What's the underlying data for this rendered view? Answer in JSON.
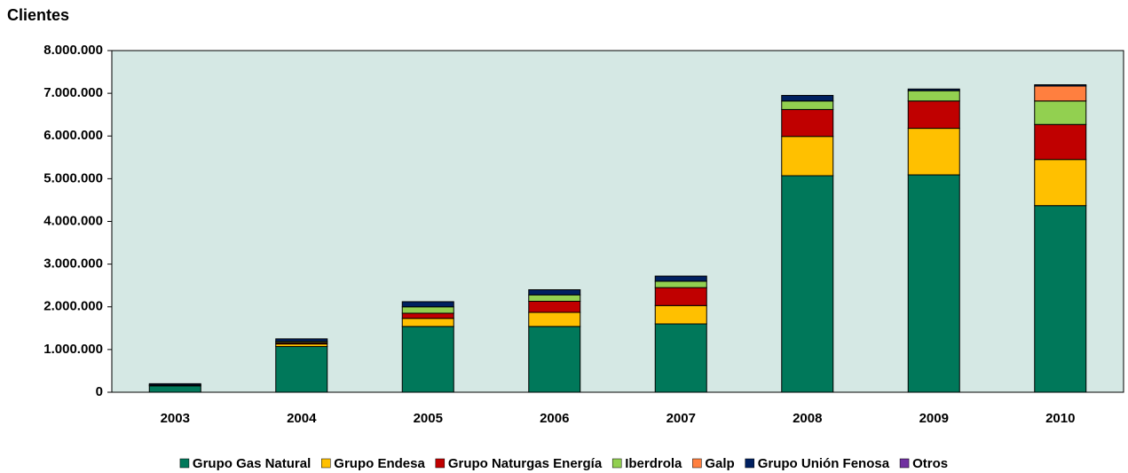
{
  "chart_data": {
    "type": "stacked_bar",
    "title": "Clientes",
    "categories": [
      "2003",
      "2004",
      "2005",
      "2006",
      "2007",
      "2008",
      "2009",
      "2010"
    ],
    "series": [
      {
        "name": "Grupo Gas Natural",
        "color": "#00785a",
        "values": [
          150000,
          1070000,
          1540000,
          1540000,
          1600000,
          5070000,
          5090000,
          4370000
        ]
      },
      {
        "name": "Grupo Endesa",
        "color": "#ffc000",
        "values": [
          20000,
          60000,
          190000,
          330000,
          430000,
          920000,
          1090000,
          1080000
        ]
      },
      {
        "name": "Grupo Naturgas Energía",
        "color": "#c00000",
        "values": [
          0,
          30000,
          120000,
          260000,
          420000,
          630000,
          640000,
          820000
        ]
      },
      {
        "name": "Iberdrola",
        "color": "#92d050",
        "values": [
          0,
          30000,
          150000,
          150000,
          150000,
          200000,
          240000,
          550000
        ]
      },
      {
        "name": "Galp",
        "color": "#ff7f3f",
        "values": [
          0,
          0,
          0,
          0,
          0,
          0,
          0,
          350000
        ]
      },
      {
        "name": "Grupo Unión Fenosa",
        "color": "#002060",
        "values": [
          30000,
          60000,
          120000,
          120000,
          120000,
          130000,
          40000,
          30000
        ]
      },
      {
        "name": "Otros",
        "color": "#7030a0",
        "values": [
          0,
          0,
          0,
          0,
          0,
          0,
          0,
          0
        ]
      }
    ],
    "ylim": [
      0,
      8000000
    ],
    "yticks": [
      0,
      {
        "value": 1000000,
        "label": "1.000.000"
      },
      {
        "value": 2000000,
        "label": "2.000.000"
      },
      {
        "value": 3000000,
        "label": "3.000.000"
      },
      {
        "value": 4000000,
        "label": "4.000.000"
      },
      {
        "value": 5000000,
        "label": "5.000.000"
      },
      {
        "value": 6000000,
        "label": "6.000.000"
      },
      {
        "value": 7000000,
        "label": "7.000.000"
      },
      {
        "value": 8000000,
        "label": "8.000.000"
      }
    ],
    "plot_background": "#d5e8e4",
    "legend": "bottom"
  }
}
